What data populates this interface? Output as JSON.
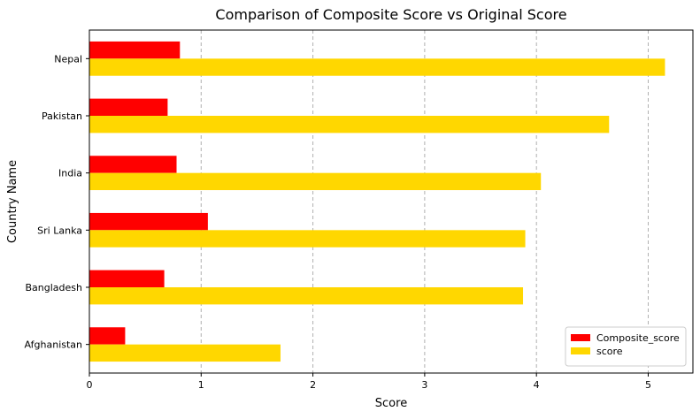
{
  "chart_data": {
    "type": "bar",
    "orientation": "horizontal",
    "title": "Comparison of Composite Score vs Original Score",
    "xlabel": "Score",
    "ylabel": "Country Name",
    "categories": [
      "Afghanistan",
      "Bangladesh",
      "Sri Lanka",
      "India",
      "Pakistan",
      "Nepal"
    ],
    "series": [
      {
        "name": "Composite_score",
        "color": "#ff0000",
        "values": [
          0.32,
          0.67,
          1.06,
          0.78,
          0.7,
          0.81
        ]
      },
      {
        "name": "score",
        "color": "#ffd700",
        "values": [
          1.71,
          3.88,
          3.9,
          4.04,
          4.65,
          5.15
        ]
      }
    ],
    "xlim": [
      0,
      5.4
    ],
    "xticks": [
      0,
      1,
      2,
      3,
      4,
      5
    ],
    "grid": "x-dashed",
    "legend_position": "lower-right"
  }
}
